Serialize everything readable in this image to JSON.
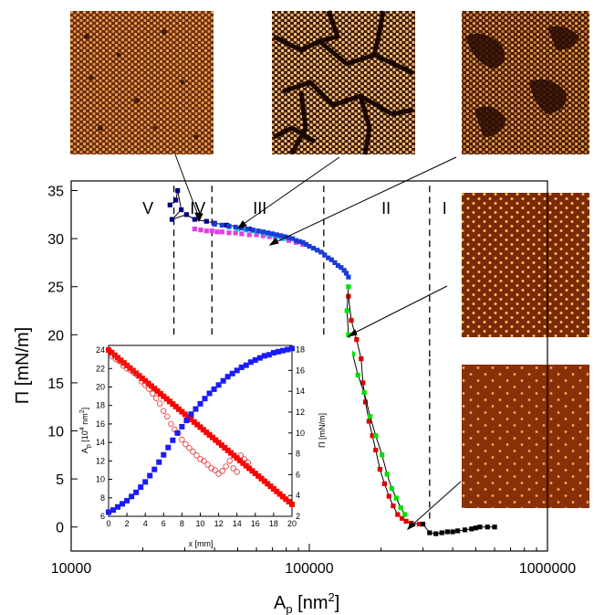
{
  "chart_data": [
    {
      "type": "scatter",
      "x_scale": "log",
      "xlim": [
        10000,
        1000000
      ],
      "ylim": [
        -2.5,
        36
      ],
      "xlabel": "A",
      "xlabel_sub": "p",
      "xlabel_unit": " [nm",
      "xlabel_sup": "2",
      "xlabel_close": "]",
      "ylabel": "Π [mN/m]",
      "xtick_values": [
        10000,
        100000,
        1000000
      ],
      "xtick_labels": [
        "10000",
        "100000",
        "1000000"
      ],
      "ytick_values": [
        0,
        5,
        10,
        15,
        20,
        25,
        30,
        35
      ],
      "ytick_labels": [
        "0",
        "5",
        "10",
        "15",
        "20",
        "25",
        "30",
        "35"
      ],
      "regions": [
        {
          "label": "V",
          "x": 21000
        },
        {
          "label": "IV",
          "x": 34000
        },
        {
          "label": "III",
          "x": 62000
        },
        {
          "label": "II",
          "x": 210000
        },
        {
          "label": "I",
          "x": 370000
        }
      ],
      "dividers_x": [
        27000,
        39000,
        115000,
        320000
      ],
      "divider_y_range": [
        17.5,
        35.5
      ],
      "series": [
        {
          "color": "#000080",
          "connected": true,
          "x": [
            26000,
            27500,
            28000,
            29000,
            26500,
            30500,
            33000,
            37000,
            40000,
            45000,
            52000,
            56000
          ],
          "y": [
            33.5,
            34.0,
            35.0,
            33.0,
            32.0,
            32.5,
            32.0,
            31.8,
            31.6,
            31.4,
            31.2,
            31.0
          ]
        },
        {
          "color": "#e040e0",
          "connected": false,
          "x": [
            33000,
            35000,
            37000,
            39000,
            41000,
            43000,
            46000,
            49000,
            52000,
            56000,
            60000,
            64000,
            68000,
            72000,
            77000,
            82000,
            88000,
            94000
          ],
          "y": [
            31.0,
            30.9,
            30.8,
            30.8,
            30.7,
            30.7,
            30.6,
            30.6,
            30.5,
            30.4,
            30.4,
            30.3,
            30.2,
            30.1,
            30.0,
            29.8,
            29.6,
            29.4
          ]
        },
        {
          "color": "#00d8e8",
          "connected": false,
          "x": [
            46000,
            50000,
            54000,
            58000,
            62000,
            66000,
            70000,
            74000,
            78000
          ],
          "y": [
            31.2,
            31.0,
            30.9,
            30.8,
            30.7,
            30.5,
            30.4,
            30.2,
            30.0
          ]
        },
        {
          "color": "#1a3cd8",
          "connected": false,
          "x": [
            40000,
            43000,
            46000,
            49000,
            52000,
            55000,
            58000,
            61000,
            64000,
            67000,
            70000,
            73000,
            76000,
            79000,
            82000,
            85000,
            88000,
            91000,
            94000,
            97000,
            100000,
            104000,
            108000,
            112000,
            116000,
            120000,
            124000,
            128000,
            132000,
            136000,
            140000,
            143000,
            146000
          ],
          "y": [
            31.5,
            31.4,
            31.3,
            31.2,
            31.1,
            31.0,
            30.9,
            30.8,
            30.7,
            30.6,
            30.5,
            30.4,
            30.3,
            30.2,
            30.1,
            30.0,
            29.8,
            29.7,
            29.6,
            29.4,
            29.2,
            29.0,
            28.8,
            28.6,
            28.3,
            28.0,
            27.8,
            27.5,
            27.2,
            27.0,
            26.7,
            26.4,
            26.0
          ]
        },
        {
          "color": "#e00000",
          "connected": true,
          "x": [
            146000,
            150000,
            158000,
            165000,
            168000,
            172000,
            178000,
            184000,
            190000,
            198000,
            207000,
            216000,
            225000,
            235000,
            245000,
            255000,
            268000,
            290000
          ],
          "y": [
            24.0,
            21.5,
            19.5,
            17.5,
            15.0,
            13.0,
            11.0,
            9.5,
            8.0,
            6.0,
            4.5,
            3.2,
            2.2,
            1.3,
            0.9,
            0.6,
            0.4,
            0.3
          ]
        },
        {
          "color": "#00e000",
          "connected": true,
          "x": [
            146000,
            144000,
            146000,
            152000,
            160000,
            170000,
            180000,
            190000,
            202000,
            212000,
            222000,
            232000,
            242000,
            252000
          ],
          "y": [
            25.0,
            22.5,
            20.0,
            18.0,
            15.8,
            14.0,
            11.5,
            9.5,
            7.5,
            5.5,
            4.0,
            3.0,
            2.0,
            1.3
          ]
        },
        {
          "color": "#000000",
          "connected": true,
          "x": [
            300000,
            320000,
            340000,
            360000,
            380000,
            400000,
            420000,
            450000,
            480000,
            500000,
            520000,
            560000,
            600000
          ],
          "y": [
            0.3,
            -0.6,
            -0.7,
            -0.6,
            -0.5,
            -0.5,
            -0.4,
            -0.3,
            -0.2,
            -0.1,
            0.0,
            0.0,
            0.0
          ]
        }
      ]
    },
    {
      "type": "scatter",
      "xlabel": "x [mm]",
      "xlim": [
        0,
        20
      ],
      "ylabel_left": "A",
      "ylabel_left_sub": "p",
      "ylabel_left_unit": " [10",
      "ylabel_left_sup": "4",
      "ylabel_left_unit2": " nm",
      "ylabel_left_sup2": "2",
      "ylabel_left_close": "]",
      "ylim_left": [
        6,
        24.5
      ],
      "ylabel_right": "Π [mN/m]",
      "ylim_right": [
        2,
        18.4
      ],
      "xtick_values": [
        0,
        2,
        4,
        6,
        8,
        10,
        12,
        14,
        16,
        18,
        20
      ],
      "xtick_labels": [
        "0",
        "2",
        "4",
        "6",
        "8",
        "10",
        "12",
        "14",
        "16",
        "18",
        "20"
      ],
      "ytick_left_values": [
        6,
        8,
        10,
        12,
        14,
        16,
        18,
        20,
        22,
        24
      ],
      "ytick_left_labels": [
        "6",
        "8",
        "10",
        "12",
        "14",
        "16",
        "18",
        "20",
        "22",
        "24"
      ],
      "ytick_right_values": [
        2,
        4,
        6,
        8,
        10,
        12,
        14,
        16,
        18
      ],
      "ytick_right_labels": [
        "2",
        "4",
        "6",
        "8",
        "10",
        "12",
        "14",
        "16",
        "18"
      ],
      "red_line": {
        "color": "#ff0000",
        "x": [
          0,
          20
        ],
        "y": [
          24.0,
          7.3
        ],
        "axis": "left"
      },
      "red_circles": {
        "color": "#e03030",
        "axis": "left",
        "x": [
          0.4,
          0.8,
          1.2,
          1.6,
          2.0,
          2.4,
          2.8,
          3.2,
          3.6,
          4.0,
          4.4,
          4.8,
          5.2,
          5.6,
          6.0,
          6.4,
          6.8,
          7.2,
          7.6,
          8.0,
          8.4,
          8.8,
          9.2,
          9.6,
          10.0,
          10.4,
          10.8,
          11.2,
          11.6,
          12.0,
          12.4,
          12.8,
          13.2,
          13.6,
          14.0,
          14.4,
          14.8,
          15.2
        ],
        "y": [
          23.3,
          23.0,
          22.8,
          22.3,
          22.0,
          21.8,
          21.5,
          21.2,
          20.6,
          20.2,
          19.8,
          19.3,
          18.8,
          18.2,
          17.4,
          16.8,
          16.0,
          15.4,
          15.0,
          14.3,
          13.8,
          13.4,
          13.0,
          12.6,
          12.2,
          12.0,
          11.6,
          11.2,
          11.0,
          10.6,
          10.9,
          11.4,
          12.0,
          11.2,
          10.8,
          12.6,
          12.2,
          11.8
        ]
      },
      "blue_curve": {
        "color": "#1a1aff",
        "axis": "right",
        "x": [
          0,
          0.5,
          1,
          1.5,
          2,
          2.5,
          3,
          3.5,
          4,
          4.5,
          5,
          5.5,
          6,
          6.5,
          7,
          7.5,
          8,
          8.5,
          9,
          9.5,
          10,
          10.5,
          11,
          11.5,
          12,
          12.5,
          13,
          13.5,
          14,
          14.5,
          15,
          15.5,
          16,
          16.5,
          17,
          17.5,
          18,
          18.5,
          19,
          19.5,
          20
        ],
        "y": [
          2.4,
          2.6,
          2.9,
          3.2,
          3.5,
          3.9,
          4.3,
          4.8,
          5.3,
          5.9,
          6.5,
          7.2,
          7.9,
          8.6,
          9.3,
          10.0,
          10.6,
          11.2,
          11.8,
          12.3,
          12.8,
          13.3,
          13.8,
          14.2,
          14.6,
          15.0,
          15.4,
          15.7,
          16.0,
          16.3,
          16.5,
          16.8,
          17.0,
          17.2,
          17.4,
          17.5,
          17.7,
          17.8,
          17.9,
          18.0,
          18.1
        ]
      }
    }
  ],
  "colors": {
    "afm_dark": "#3b1a05",
    "afm_mid": "#8a3d0e",
    "afm_particle": "#f2b266",
    "afm_hex_bg": "#7a2a06",
    "afm_hex_dot": "#f5c060"
  }
}
